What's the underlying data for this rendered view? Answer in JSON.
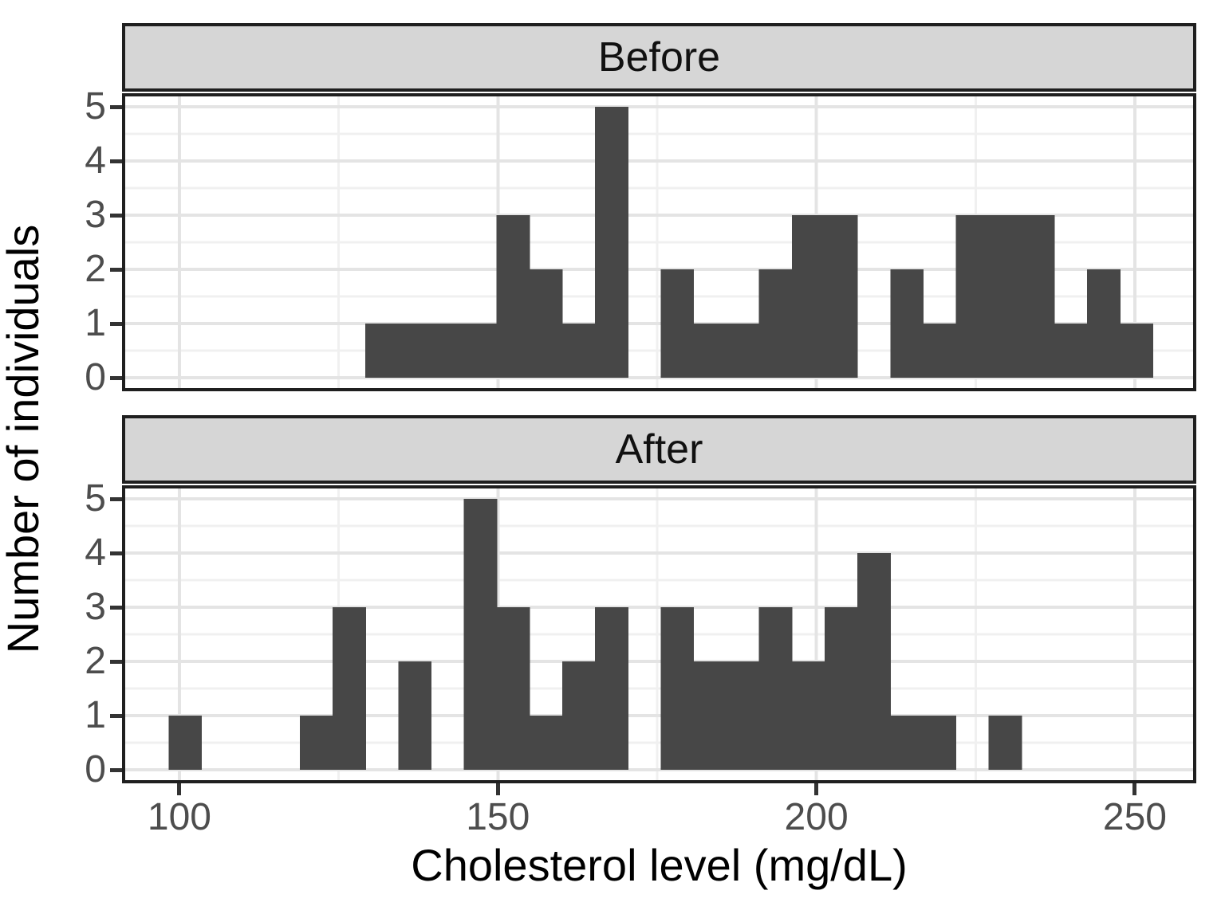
{
  "figure": {
    "x_axis_title": "Cholesterol level (mg/dL)",
    "y_axis_title": "Number of individuals"
  },
  "chart_data": {
    "type": "histogram",
    "faceted": true,
    "facet_layout": "rows",
    "x_label": "Cholesterol level (mg/dL)",
    "y_label": "Number of individuals",
    "x_ticks": [
      100,
      150,
      200,
      250
    ],
    "y_ticks": [
      0,
      1,
      2,
      3,
      4,
      5
    ],
    "x_domain": [
      90.99,
      259.65
    ],
    "y_domain": [
      -0.25,
      5.25
    ],
    "grid": "major-and-minor",
    "bin_start": 98.3,
    "bin_width": 5.15,
    "facets": [
      {
        "label": "Before",
        "counts": [
          0,
          0,
          0,
          0,
          0,
          0,
          1,
          1,
          1,
          1,
          3,
          2,
          1,
          5,
          0,
          2,
          1,
          1,
          2,
          3,
          3,
          0,
          2,
          1,
          3,
          3,
          3,
          1,
          2,
          1
        ]
      },
      {
        "label": "After",
        "counts": [
          1,
          0,
          0,
          0,
          1,
          3,
          0,
          2,
          0,
          5,
          3,
          1,
          2,
          3,
          0,
          3,
          2,
          2,
          3,
          2,
          3,
          4,
          1,
          1,
          0,
          1,
          0,
          0,
          0,
          0
        ]
      }
    ],
    "colors": {
      "bar_fill": "#474747",
      "strip_fill": "#d6d6d6",
      "panel_border": "#1f1f1f",
      "grid_major": "#e4e4e4",
      "grid_minor": "#f0f0f0",
      "tick_label": "#4d4d4d",
      "tick_mark": "#333333",
      "strip_text": "#111111",
      "panel_bg": "#ffffff"
    }
  }
}
